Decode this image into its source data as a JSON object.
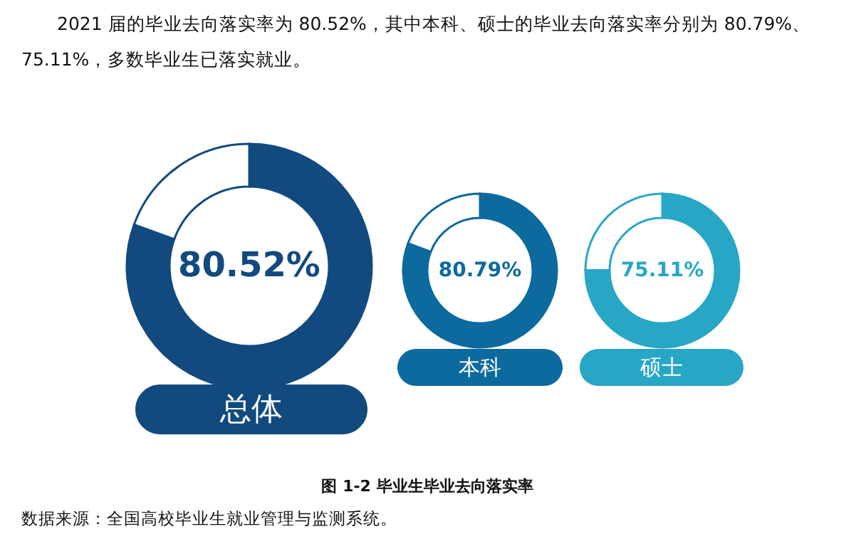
{
  "chart_data": [
    {
      "type": "donut",
      "title": "总体",
      "categories": [
        null,
        null
      ],
      "values": [
        80.52,
        19.48
      ],
      "colors": [
        "#124a7f",
        "#ffffff"
      ],
      "annotations": [
        "80.52%",
        "2021 届的毕业去向落实率为 80.52%，其中本科、硕士的毕业去向落实率分别为 80.79%、",
        "75.11%，多数毕业生已落实就业。",
        "图  1-2      毕业生毕业去向落实率",
        "数据来源：全国高校毕业生就业管理与监测系统。"
      ]
    },
    {
      "type": "donut",
      "title": "本科",
      "categories": [
        null,
        null
      ],
      "values": [
        80.79,
        19.21
      ],
      "colors": [
        "#0d6a9e",
        "#ffffff"
      ],
      "annotations": [
        "80.79%"
      ]
    },
    {
      "type": "donut",
      "title": "硕士",
      "categories": [
        null,
        null
      ],
      "values": [
        75.11,
        24.89
      ],
      "colors": [
        "#27a7c5",
        "#ffffff"
      ],
      "annotations": [
        "75.11%"
      ]
    }
  ]
}
